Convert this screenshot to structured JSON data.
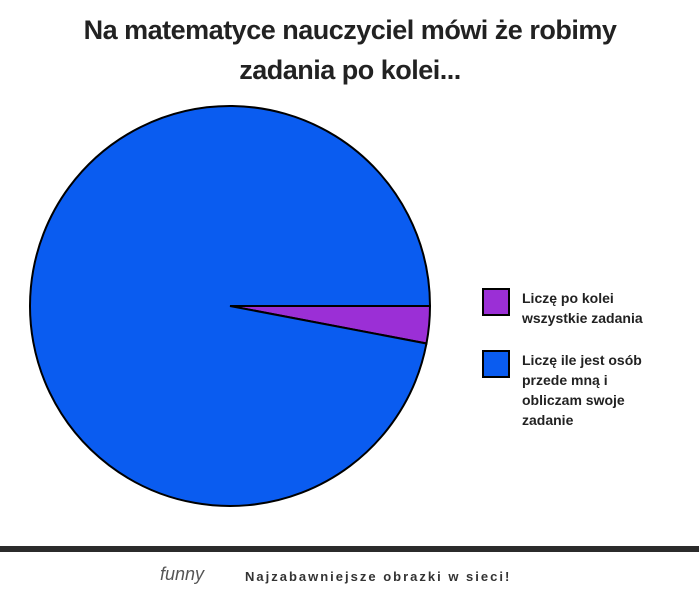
{
  "chart_data": {
    "type": "pie",
    "title": "Na matematyce nauczyciel mówi że robimy zadania po kolei...",
    "categories": [
      "Liczę po kolei wszystkie zadania",
      "Liczę ile jest osób przede mną i obliczam swoje zadanie"
    ],
    "values": [
      3,
      97
    ],
    "colors": [
      "#9b2fd6",
      "#0a5cf0"
    ]
  },
  "footer": {
    "logo": "funny",
    "tagline": "Najzabawniejsze obrazki w sieci!"
  }
}
